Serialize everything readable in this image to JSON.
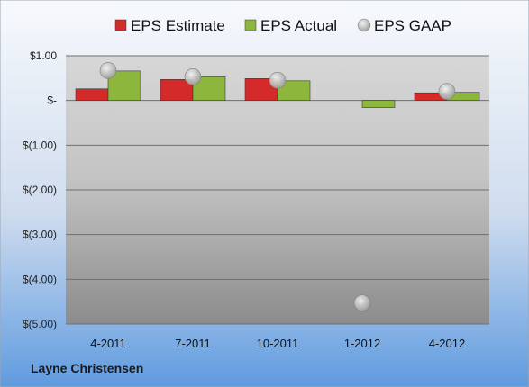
{
  "chart_data": {
    "type": "bar",
    "categories": [
      "4-2011",
      "7-2011",
      "10-2011",
      "1-2012",
      "4-2012"
    ],
    "series": [
      {
        "name": "EPS Estimate",
        "kind": "bar",
        "color": "#d42a2a",
        "values": [
          0.26,
          0.47,
          0.49,
          0.0,
          0.17
        ]
      },
      {
        "name": "EPS Actual",
        "kind": "bar",
        "color": "#8db63c",
        "values": [
          0.66,
          0.53,
          0.44,
          -0.16,
          0.18
        ]
      },
      {
        "name": "EPS GAAP",
        "kind": "point",
        "color": "#b9b9b9",
        "values": [
          0.67,
          0.53,
          0.45,
          -4.53,
          0.2
        ]
      }
    ],
    "y_ticks": [
      1.0,
      0.0,
      -1.0,
      -2.0,
      -3.0,
      -4.0,
      -5.0
    ],
    "y_tick_labels": [
      "$1.00",
      "$-",
      "$(1.00)",
      "$(2.00)",
      "$(3.00)",
      "$(4.00)",
      "$(5.00)"
    ],
    "ylim": [
      -5.0,
      1.0
    ],
    "grid": true,
    "legend_position": "top"
  },
  "footer": {
    "company": "Layne Christensen"
  }
}
